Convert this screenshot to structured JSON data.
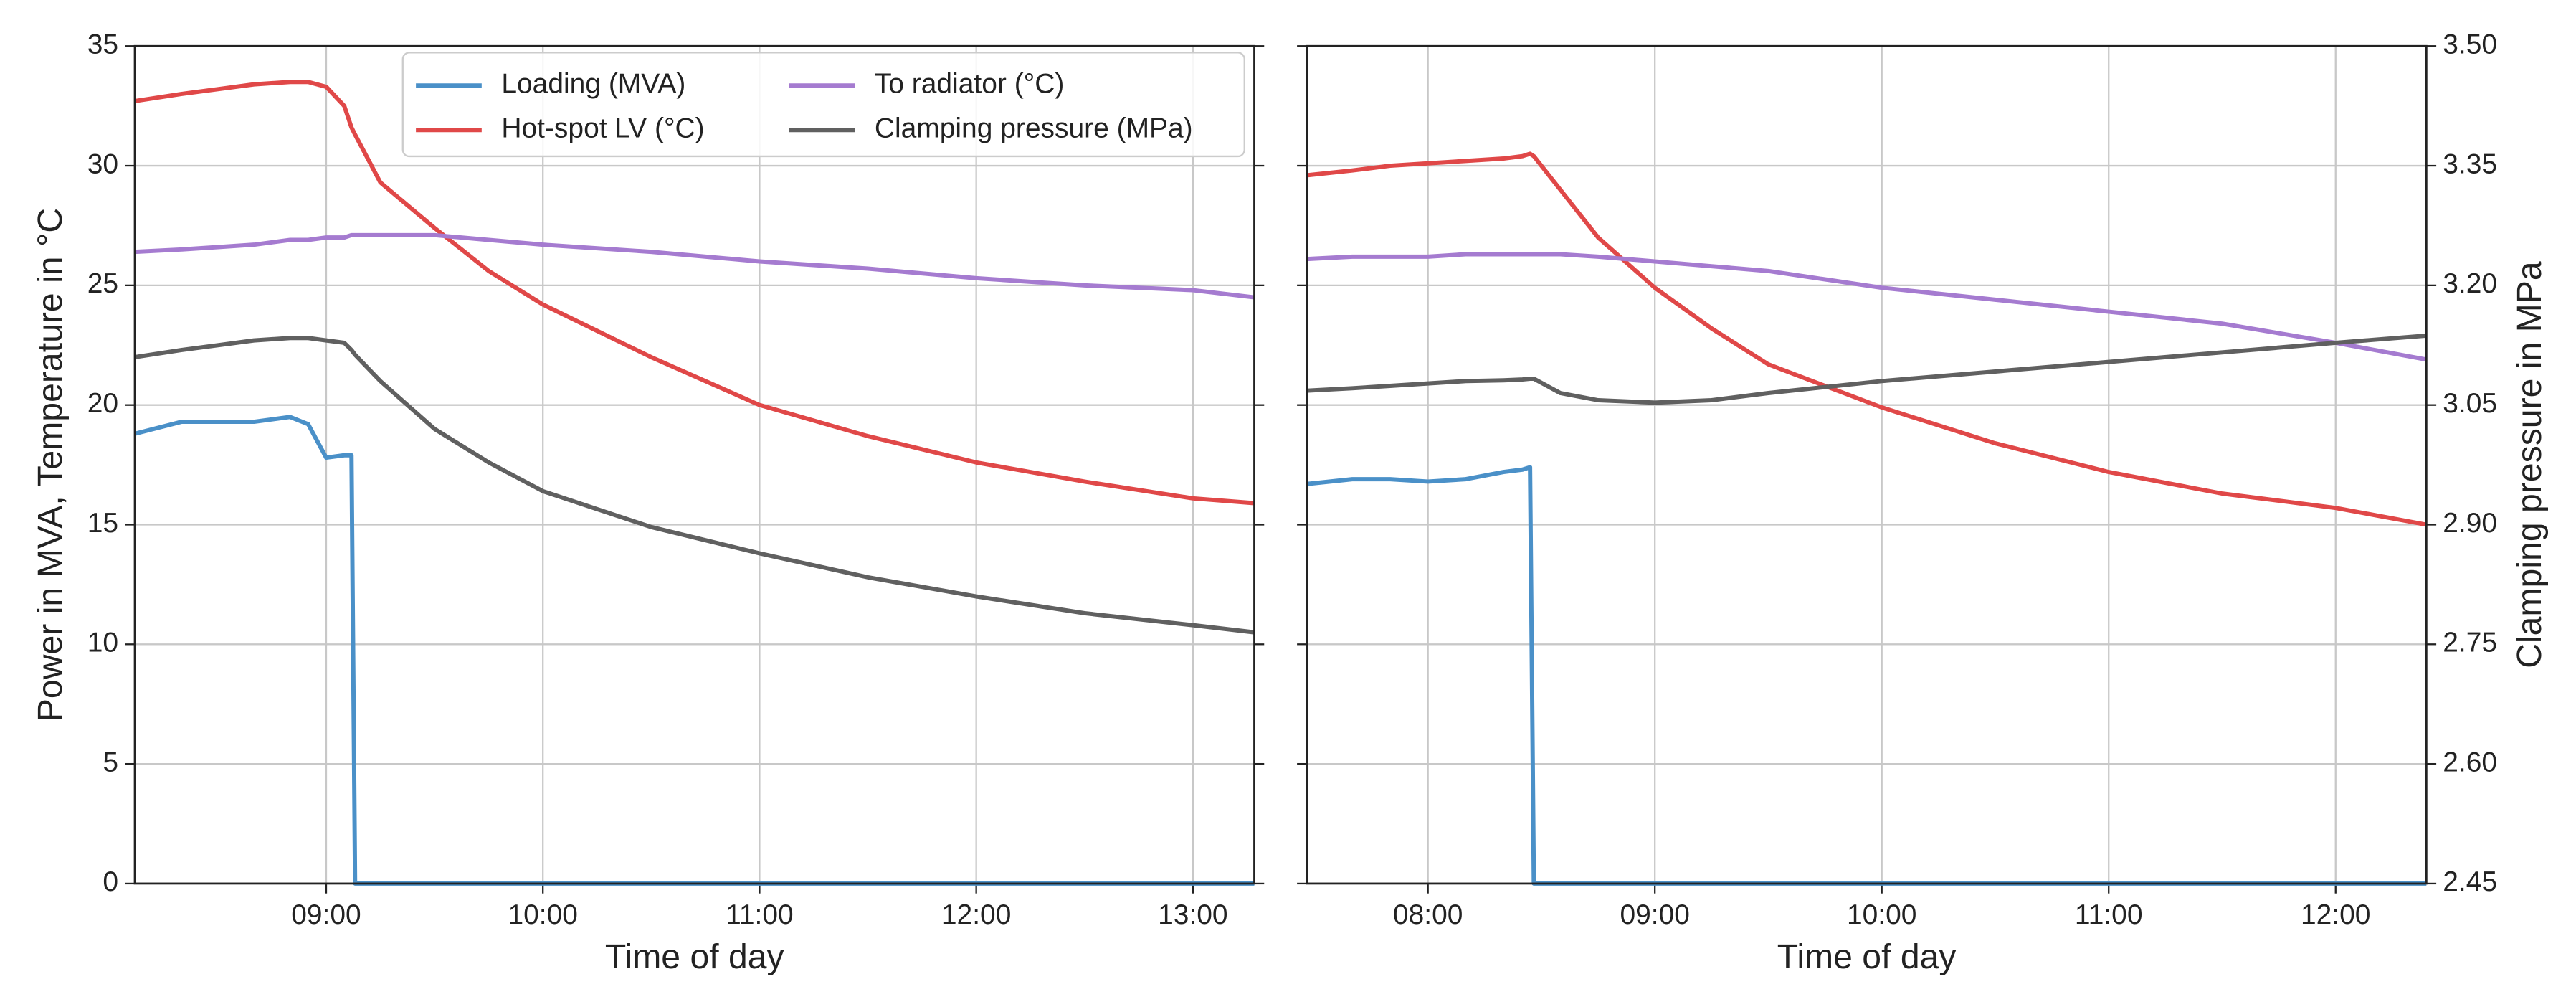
{
  "chart_data": [
    {
      "type": "line",
      "xlabel": "Time of day",
      "ylabel": "Power in MVA, Temperature in °C",
      "grid": true,
      "legend": "upper center",
      "x": [
        "08:07",
        "08:20",
        "08:30",
        "08:40",
        "08:50",
        "08:55",
        "09:00",
        "09:05",
        "09:07",
        "09:08",
        "09:15",
        "09:30",
        "09:45",
        "10:00",
        "10:30",
        "11:00",
        "11:30",
        "12:00",
        "12:30",
        "13:00",
        "13:17"
      ],
      "xlim": [
        "08:07",
        "13:17"
      ],
      "xticks": [
        "09:00",
        "10:00",
        "11:00",
        "12:00",
        "13:00"
      ],
      "ylim": [
        0,
        35
      ],
      "yticks": [
        0,
        5,
        10,
        15,
        20,
        25,
        30,
        35
      ],
      "y2lim": [
        2.45,
        3.5
      ],
      "series": [
        {
          "name": "Loading (MVA)",
          "color": "#4a90c8",
          "values": [
            18.8,
            19.3,
            19.3,
            19.3,
            19.5,
            19.2,
            17.8,
            17.9,
            17.9,
            0,
            0,
            0,
            0,
            0,
            0,
            0,
            0,
            0,
            0,
            0,
            0
          ]
        },
        {
          "name": "Hot-spot LV (°C)",
          "color": "#e04848",
          "values": [
            32.7,
            33.0,
            33.2,
            33.4,
            33.5,
            33.5,
            33.3,
            32.5,
            31.6,
            31.3,
            29.3,
            27.4,
            25.6,
            24.2,
            22.0,
            20.0,
            18.7,
            17.6,
            16.8,
            16.1,
            15.9
          ]
        },
        {
          "name": "To radiator (°C)",
          "color": "#a57bd0",
          "values": [
            26.4,
            26.5,
            26.6,
            26.7,
            26.9,
            26.9,
            27.0,
            27.0,
            27.1,
            27.1,
            27.1,
            27.1,
            26.9,
            26.7,
            26.4,
            26.0,
            25.7,
            25.3,
            25.0,
            24.8,
            24.5
          ]
        },
        {
          "name": "Clamping pressure (MPa)",
          "color": "#606060",
          "axis": "y2",
          "values": [
            3.11,
            3.119,
            3.125,
            3.131,
            3.134,
            3.134,
            3.131,
            3.128,
            3.119,
            3.113,
            3.08,
            3.02,
            2.978,
            2.942,
            2.897,
            2.864,
            2.834,
            2.81,
            2.789,
            2.774,
            2.765
          ]
        }
      ]
    },
    {
      "type": "line",
      "xlabel": "Time of day",
      "y2label": "Clamping pressure in MPa",
      "grid": true,
      "x": [
        "07:28",
        "07:40",
        "07:50",
        "08:00",
        "08:10",
        "08:20",
        "08:25",
        "08:27",
        "08:28",
        "08:35",
        "08:45",
        "09:00",
        "09:15",
        "09:30",
        "10:00",
        "10:30",
        "11:00",
        "11:30",
        "12:00",
        "12:24"
      ],
      "xlim": [
        "07:28",
        "12:24"
      ],
      "xticks": [
        "08:00",
        "09:00",
        "10:00",
        "11:00",
        "12:00"
      ],
      "ylim": [
        0,
        35
      ],
      "yticks": [
        0,
        5,
        10,
        15,
        20,
        25,
        30,
        35
      ],
      "y2lim": [
        2.45,
        3.5
      ],
      "y2ticks": [
        2.45,
        {
          "value": 2.6,
          "label": "2.60"
        },
        2.75,
        {
          "value": 2.9,
          "label": "2.90"
        },
        3.05,
        {
          "value": 3.2,
          "label": "3.20"
        },
        3.35,
        {
          "value": 3.5,
          "label": "3.50"
        }
      ],
      "series": [
        {
          "color": "#4a90c8",
          "values": [
            16.7,
            16.9,
            16.9,
            16.8,
            16.9,
            17.2,
            17.3,
            17.4,
            0,
            0,
            0,
            0,
            0,
            0,
            0,
            0,
            0,
            0,
            0,
            0
          ]
        },
        {
          "color": "#e04848",
          "values": [
            29.6,
            29.8,
            30.0,
            30.1,
            30.2,
            30.3,
            30.4,
            30.5,
            30.4,
            29.0,
            27.0,
            24.9,
            23.2,
            21.7,
            19.9,
            18.4,
            17.2,
            16.3,
            15.7,
            15.0
          ]
        },
        {
          "color": "#a57bd0",
          "values": [
            26.1,
            26.2,
            26.2,
            26.2,
            26.3,
            26.3,
            26.3,
            26.3,
            26.3,
            26.3,
            26.2,
            26.0,
            25.8,
            25.6,
            24.9,
            24.4,
            23.9,
            23.4,
            22.6,
            21.9
          ]
        },
        {
          "color": "#606060",
          "axis": "y2",
          "values": [
            3.068,
            3.071,
            3.074,
            3.077,
            3.08,
            3.081,
            3.082,
            3.083,
            3.083,
            3.065,
            3.056,
            3.053,
            3.056,
            3.065,
            3.08,
            3.092,
            3.104,
            3.116,
            3.128,
            3.137
          ]
        }
      ]
    }
  ]
}
